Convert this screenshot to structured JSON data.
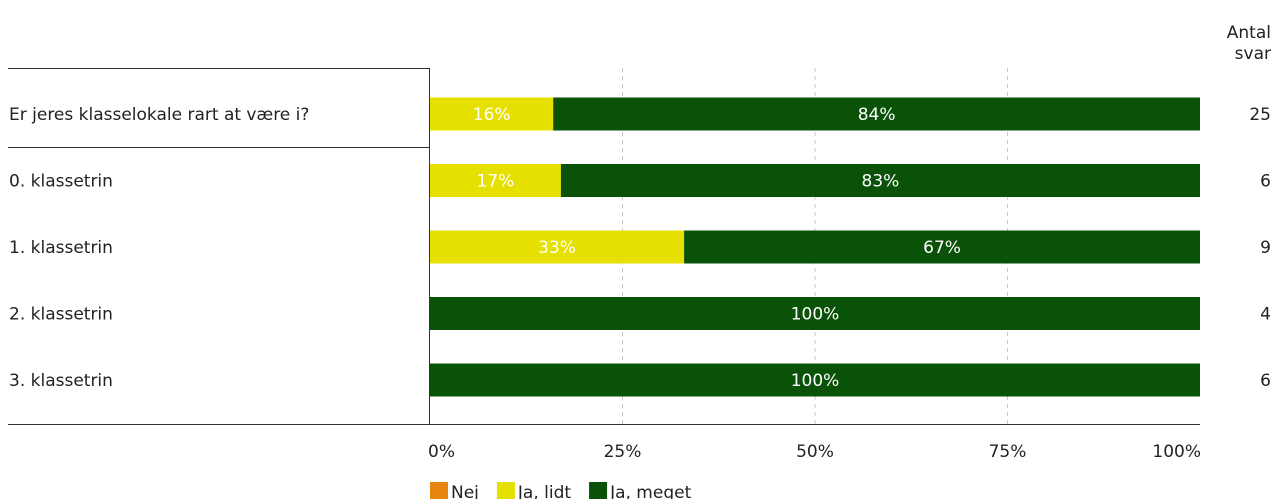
{
  "chart_data": {
    "type": "bar",
    "stacked": true,
    "orientation": "horizontal",
    "count_header": [
      "Antal",
      "svar"
    ],
    "categories": [
      "Er jeres klasselokale rart at være i?",
      "0. klassetrin",
      "1. klassetrin",
      "2. klassetrin",
      "3. klassetrin"
    ],
    "counts": [
      25,
      6,
      9,
      4,
      6
    ],
    "series": [
      {
        "name": "Nej",
        "color": "#e8850c",
        "values": [
          0,
          0,
          0,
          0,
          0
        ]
      },
      {
        "name": "Ja, lidt",
        "color": "#e6e000",
        "values": [
          16,
          17,
          33,
          0,
          0
        ]
      },
      {
        "name": "Ja, meget",
        "color": "#0b5209",
        "values": [
          84,
          83,
          67,
          100,
          100
        ]
      }
    ],
    "xlim": [
      0,
      100
    ],
    "x_ticks": [
      "0%",
      "25%",
      "50%",
      "75%",
      "100%"
    ],
    "value_suffix": "%",
    "grid": true,
    "legend_position": "bottom"
  }
}
